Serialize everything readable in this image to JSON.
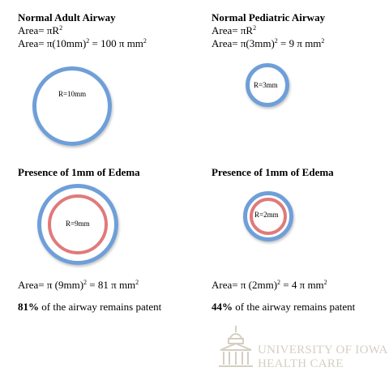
{
  "panels": {
    "adult": {
      "title": "Normal Adult Airway",
      "formula_area_prefix": "Area= πR",
      "formula_exp": "2",
      "calc_prefix": "Area= π(10mm)",
      "calc_exp": "2",
      "calc_mid": " = 100 π mm",
      "calc_exp2": "2",
      "radius_label": "R=10mm"
    },
    "pediatric": {
      "title": "Normal Pediatric Airway",
      "formula_area_prefix": "Area= πR",
      "formula_exp": "2",
      "calc_prefix": "Area= π(3mm)",
      "calc_exp": "2",
      "calc_mid": " = 9 π mm",
      "calc_exp2": "2",
      "radius_label": "R=3mm"
    },
    "adult_edema": {
      "title": "Presence of 1mm of Edema",
      "radius_label": "R=9mm",
      "calc_prefix": "Area= π (9mm)",
      "calc_exp": "2",
      "calc_mid": " = 81 π mm",
      "calc_exp2": "2",
      "percent": "81%",
      "patent_text": " of the airway remains patent"
    },
    "pediatric_edema": {
      "title": "Presence of 1mm of Edema",
      "radius_label": "R=2mm",
      "calc_prefix": "Area= π (2mm)",
      "calc_exp": "2",
      "calc_mid": " = 4 π mm",
      "calc_exp2": "2",
      "percent": "44%",
      "patent_text": " of the airway remains patent"
    }
  },
  "logo": {
    "line1": "UNIVERSITY OF IOWA",
    "line2": "HEALTH CARE",
    "icon": "old-capitol-building-icon"
  },
  "colors": {
    "airway_ring": "#6f9fd8",
    "edema_ring": "#e07a7a",
    "logo": "#d4cfc2"
  }
}
